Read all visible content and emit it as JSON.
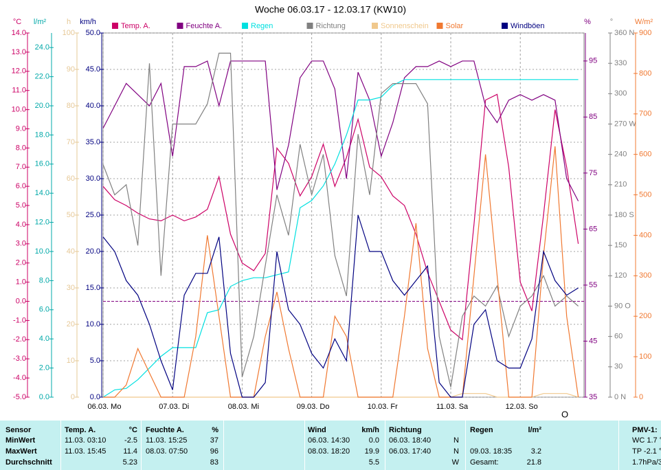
{
  "chart_data": {
    "type": "line",
    "title": "Woche 06.03.17 - 12.03.17 (KW10)",
    "annotation": "O",
    "xlim": [
      0,
      166
    ],
    "xticks": [
      {
        "value": 0,
        "label": "06.03. Mo"
      },
      {
        "value": 24,
        "label": "07.03. Di"
      },
      {
        "value": 48,
        "label": "08.03. Mi"
      },
      {
        "value": 72,
        "label": "09.03. Do"
      },
      {
        "value": 96,
        "label": "10.03. Fr"
      },
      {
        "value": 120,
        "label": "11.03. Sa"
      },
      {
        "value": 144,
        "label": "12.03. So"
      }
    ],
    "grid": true,
    "grid_axis": 3,
    "reference_line": {
      "axis": 0,
      "value": 0,
      "color": "#800080"
    },
    "axes": [
      {
        "unit": "°C",
        "color": "#cc0066",
        "lim": [
          -5,
          14
        ],
        "ticks": [
          {
            "value": -5,
            "label": "-5.0"
          },
          {
            "value": -4,
            "label": "-4.0"
          },
          {
            "value": -3,
            "label": "-3.0"
          },
          {
            "value": -2,
            "label": "-2.0"
          },
          {
            "value": -1,
            "label": "-1.0"
          },
          {
            "value": 0,
            "label": "0.0"
          },
          {
            "value": 1,
            "label": "1.0"
          },
          {
            "value": 2,
            "label": "2.0"
          },
          {
            "value": 3,
            "label": "3.0"
          },
          {
            "value": 4,
            "label": "4.0"
          },
          {
            "value": 5,
            "label": "5.0"
          },
          {
            "value": 6,
            "label": "6.0"
          },
          {
            "value": 7,
            "label": "7.0"
          },
          {
            "value": 8,
            "label": "8.0"
          },
          {
            "value": 9,
            "label": "9.0"
          },
          {
            "value": 10,
            "label": "10.0"
          },
          {
            "value": 11,
            "label": "11.0"
          },
          {
            "value": 12,
            "label": "12.0"
          },
          {
            "value": 13,
            "label": "13.0"
          },
          {
            "value": 14,
            "label": "14.0"
          }
        ]
      },
      {
        "unit": "l/m²",
        "color": "#00a8a8",
        "lim": [
          0,
          25
        ],
        "ticks": [
          {
            "value": 0,
            "label": "0.0"
          },
          {
            "value": 2,
            "label": "2.0"
          },
          {
            "value": 4,
            "label": "4.0"
          },
          {
            "value": 6,
            "label": "6.0"
          },
          {
            "value": 8,
            "label": "8.0"
          },
          {
            "value": 10,
            "label": "10.0"
          },
          {
            "value": 12,
            "label": "12.0"
          },
          {
            "value": 14,
            "label": "14.0"
          },
          {
            "value": 16,
            "label": "16.0"
          },
          {
            "value": 18,
            "label": "18.0"
          },
          {
            "value": 20,
            "label": "20.0"
          },
          {
            "value": 22,
            "label": "22.0"
          },
          {
            "value": 24,
            "label": "24.0"
          }
        ]
      },
      {
        "unit": "h",
        "color": "#e6c896",
        "lim": [
          0,
          100
        ],
        "ticks": [
          0,
          10,
          20,
          30,
          40,
          50,
          60,
          70,
          80,
          90,
          100
        ]
      },
      {
        "unit": "km/h",
        "color": "#000080",
        "lim": [
          0,
          50
        ],
        "ticks": [
          {
            "value": 0,
            "label": "0.0"
          },
          {
            "value": 5,
            "label": "5.0"
          },
          {
            "value": 10,
            "label": "10.0"
          },
          {
            "value": 15,
            "label": "15.0"
          },
          {
            "value": 20,
            "label": "20.0"
          },
          {
            "value": 25,
            "label": "25.0"
          },
          {
            "value": 30,
            "label": "30.0"
          },
          {
            "value": 35,
            "label": "35.0"
          },
          {
            "value": 40,
            "label": "40.0"
          },
          {
            "value": 45,
            "label": "45.0"
          },
          {
            "value": 50,
            "label": "50.0"
          }
        ]
      },
      {
        "unit": "%",
        "color": "#800080",
        "lim": [
          35,
          100
        ],
        "ticks": [
          35,
          45,
          55,
          65,
          75,
          85,
          95
        ]
      },
      {
        "unit": "°",
        "color": "#808080",
        "lim": [
          0,
          360
        ],
        "ticks": [
          {
            "value": 0,
            "label": "0 N"
          },
          30,
          60,
          {
            "value": 90,
            "label": "90 O"
          },
          120,
          150,
          {
            "value": 180,
            "label": "180 S"
          },
          210,
          240,
          {
            "value": 270,
            "label": "270 W"
          },
          300,
          330,
          {
            "value": 360,
            "label": "360 N"
          }
        ]
      },
      {
        "unit": "W/m²",
        "color": "#f07830",
        "lim": [
          0,
          900
        ],
        "ticks": [
          0,
          100,
          200,
          300,
          400,
          500,
          600,
          700,
          800,
          900
        ]
      }
    ],
    "x": [
      0,
      4,
      8,
      12,
      16,
      20,
      24,
      28,
      32,
      36,
      40,
      44,
      48,
      52,
      56,
      60,
      64,
      68,
      72,
      76,
      80,
      84,
      88,
      92,
      96,
      100,
      104,
      108,
      112,
      116,
      120,
      124,
      128,
      132,
      136,
      140,
      144,
      148,
      152,
      156,
      160,
      164
    ],
    "series": [
      {
        "name": "Temp. A.",
        "color": "#cc0066",
        "axis": 0,
        "values": [
          6.0,
          5.3,
          5.0,
          4.6,
          4.3,
          4.2,
          4.5,
          4.2,
          4.4,
          4.8,
          6.5,
          3.5,
          2.0,
          1.6,
          2.5,
          8.0,
          7.2,
          5.5,
          6.5,
          8.2,
          6.0,
          7.5,
          9.5,
          7.0,
          6.5,
          5.5,
          5.0,
          3.5,
          1.5,
          0.0,
          -1.5,
          -2.0,
          4.0,
          10.5,
          10.8,
          7.0,
          1.0,
          -0.5,
          4.5,
          10.0,
          7.0,
          3.0
        ]
      },
      {
        "name": "Feuchte A.",
        "color": "#800080",
        "axis": 4,
        "values": [
          83,
          87,
          91,
          89,
          87,
          91,
          78,
          94,
          94,
          95,
          87,
          95,
          95,
          95,
          95,
          72,
          80,
          92,
          95,
          95,
          90,
          74,
          93,
          88,
          78,
          84,
          92,
          94,
          94,
          95,
          94,
          95,
          95,
          87,
          84,
          88,
          89,
          88,
          89,
          88,
          74,
          70
        ]
      },
      {
        "name": "Regen",
        "color": "#00e0e0",
        "axis": 1,
        "values": [
          0,
          0.5,
          0.6,
          1.2,
          2.0,
          2.8,
          3.4,
          3.4,
          3.4,
          5.8,
          6.0,
          7.6,
          8.0,
          8.2,
          8.2,
          8.4,
          8.6,
          13.0,
          13.5,
          14.5,
          16.0,
          18.0,
          20.4,
          20.4,
          20.6,
          21.4,
          21.8,
          21.8,
          21.8,
          21.8,
          21.8,
          21.8,
          21.8,
          21.8,
          21.8,
          21.8,
          21.8,
          21.8,
          21.8,
          21.8,
          21.8,
          21.8
        ]
      },
      {
        "name": "Richtung",
        "color": "#808080",
        "axis": 5,
        "values": [
          230,
          200,
          210,
          150,
          330,
          120,
          270,
          270,
          270,
          290,
          340,
          340,
          20,
          60,
          130,
          200,
          160,
          250,
          200,
          240,
          140,
          100,
          260,
          200,
          300,
          310,
          310,
          310,
          290,
          60,
          10,
          80,
          100,
          90,
          110,
          60,
          90,
          100,
          120,
          90,
          100,
          90
        ]
      },
      {
        "name": "Sonnenschein",
        "color": "#f0c88c",
        "axis": 2,
        "values": [
          0,
          0,
          0,
          0,
          0,
          0,
          0,
          0,
          0,
          0,
          0,
          0,
          0,
          0,
          0,
          0,
          0,
          0,
          0,
          0,
          0,
          0,
          0,
          0,
          0,
          0,
          0,
          0,
          0,
          0,
          0,
          1,
          1,
          1,
          0,
          0,
          0,
          0,
          1,
          1,
          1,
          0
        ]
      },
      {
        "name": "Solar",
        "color": "#f07830",
        "axis": 6,
        "values": [
          0,
          0,
          30,
          120,
          60,
          0,
          0,
          0,
          150,
          400,
          200,
          0,
          0,
          0,
          150,
          260,
          120,
          0,
          0,
          0,
          200,
          150,
          0,
          0,
          0,
          0,
          200,
          430,
          120,
          0,
          0,
          0,
          300,
          600,
          300,
          0,
          0,
          0,
          350,
          620,
          200,
          0
        ]
      },
      {
        "name": "Windböen",
        "color": "#000080",
        "axis": 3,
        "values": [
          22,
          20,
          16,
          14,
          10,
          5,
          1,
          14,
          17,
          17,
          22,
          6,
          0,
          0,
          2,
          20,
          12,
          10,
          6,
          4,
          8,
          5,
          25,
          20,
          20,
          16,
          14,
          16,
          18,
          2,
          0,
          0,
          10,
          12,
          5,
          4,
          4,
          8,
          20,
          16,
          14,
          15
        ]
      }
    ]
  },
  "table": {
    "header": {
      "label": "Sensor",
      "temp_time": "Temp. A.",
      "temp": "°C",
      "feuchte_time": "Feuchte A.",
      "feuchte": "%",
      "wind_time": "Wind",
      "wind": "km/h",
      "richtung_time": "Richtung",
      "regen_time": "Regen",
      "regen": "l/m²",
      "pmv": "PMV-1:"
    },
    "rows": [
      {
        "label": "MinWert",
        "temp_time": "11.03. 03:10",
        "temp": "-2.5",
        "feuchte_time": "11.03. 15:25",
        "feuchte": "37",
        "wind_time": "06.03. 14:30",
        "wind": "0.0",
        "richtung_time": "06.03. 18:40",
        "richtung": "N",
        "pmv": "WC 1.7 °"
      },
      {
        "label": "MaxWert",
        "temp_time": "11.03. 15:45",
        "temp": "11.4",
        "feuchte_time": "08.03. 07:50",
        "feuchte": "96",
        "wind_time": "08.03. 18:20",
        "wind": "19.9",
        "richtung_time": "06.03. 17:40",
        "richtung": "N",
        "regen_time": "09.03. 18:35",
        "regen": "3.2",
        "pmv": "TP -2.1 °"
      },
      {
        "label": "Durchschnitt",
        "temp": "5.23",
        "feuchte": "83",
        "wind": "5.5",
        "richtung": "W",
        "regen_time": "Gesamt:",
        "regen": "21.8",
        "pmv": "1.7hPa/3"
      }
    ]
  }
}
